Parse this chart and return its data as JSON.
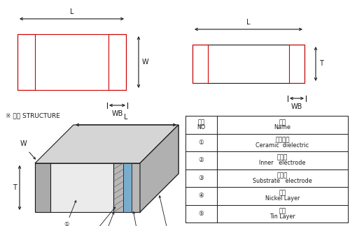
{
  "bg_color": "#ffffff",
  "fig_width": 5.0,
  "fig_height": 3.24,
  "black": "#1a1a1a",
  "red": "#cc0000",
  "gray_light": "#e8e8e8",
  "gray_mid": "#d0d0d0",
  "gray_dark": "#b8b8b8",
  "gray_darker": "#a0a0a0",
  "blue": "#6699cc",
  "table": {
    "rows": [
      [
        "①",
        "陶瓷介质",
        "Ceramic  dielectric"
      ],
      [
        "②",
        "内电极",
        "Inner   electrode"
      ],
      [
        "③",
        "外电极",
        "Substrate   electrode"
      ],
      [
        "④",
        "镍层",
        "Nickel Layer"
      ],
      [
        "⑤",
        "锡层",
        "Tin Layer"
      ]
    ]
  }
}
